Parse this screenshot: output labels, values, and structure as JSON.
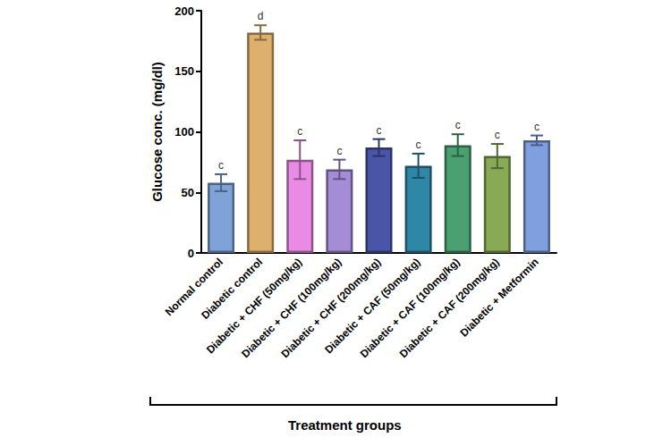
{
  "chart_data": {
    "type": "bar",
    "y_label": "Glucose conc. (mg/dl)",
    "x_label": "Treatment groups",
    "categories": [
      "Normal control",
      "Diabetic control",
      "Diabetic + CHF (50mg/kg)",
      "Diabetic + CHF (100mg/kg)",
      "Diabetic + CHF (200mg/kg)",
      "Diabetic + CAF (50mg/kg)",
      "Diabetic + CAF (100mg/kg)",
      "Diabetic + CAF (200mg/kg)",
      "Diabetic + Metformin"
    ],
    "values": [
      58,
      182,
      77,
      69,
      87,
      72,
      89,
      80,
      93
    ],
    "errors": [
      7,
      6,
      16,
      8,
      7,
      10,
      9,
      10,
      4
    ],
    "letters": [
      "c",
      "d",
      "c",
      "c",
      "c",
      "c",
      "c",
      "c",
      "c"
    ],
    "colors": [
      "#7fa3d8",
      "#deb06e",
      "#e98be5",
      "#a48cd6",
      "#4a55a8",
      "#2f87a8",
      "#4aa070",
      "#88aa55",
      "#7f9fdf"
    ],
    "ylim": [
      0,
      200
    ],
    "yticks": [
      0,
      50,
      100,
      150,
      200
    ],
    "grid": false
  }
}
